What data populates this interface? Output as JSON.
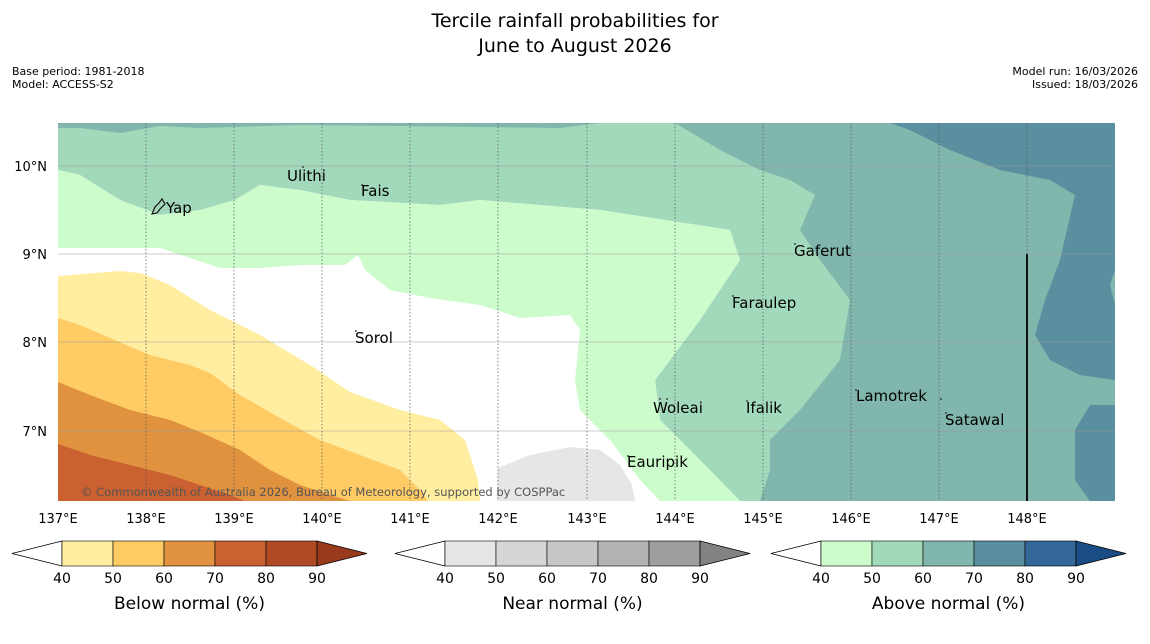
{
  "title": {
    "line1": "Tercile rainfall probabilities for",
    "line2": "June to August 2026"
  },
  "meta_left": {
    "base_period": "Base period: 1981-2018",
    "model": "Model: ACCESS-S2"
  },
  "meta_right": {
    "model_run": "Model run: 16/03/2026",
    "issued": "Issued: 18/03/2026"
  },
  "map": {
    "lat_labels": [
      "10°N",
      "9°N",
      "8°N",
      "7°N"
    ],
    "lon_labels": [
      "137°E",
      "138°E",
      "139°E",
      "140°E",
      "141°E",
      "142°E",
      "143°E",
      "144°E",
      "145°E",
      "146°E",
      "147°E",
      "148°E"
    ],
    "places": [
      {
        "name": "Ulithi"
      },
      {
        "name": "Fais"
      },
      {
        "name": "Yap"
      },
      {
        "name": "Gaferut"
      },
      {
        "name": "Faraulep"
      },
      {
        "name": "Sorol"
      },
      {
        "name": "Lamotrek"
      },
      {
        "name": "Woleai"
      },
      {
        "name": "Ifalik"
      },
      {
        "name": "Satawal"
      },
      {
        "name": "Eauripik"
      }
    ],
    "copyright": "© Commonwealth of Australia 2026, Bureau of Meteorology, supported by COSPPac"
  },
  "colorbars": [
    {
      "title": "Below normal (%)",
      "ticks": [
        "40",
        "50",
        "60",
        "70",
        "80",
        "90"
      ],
      "colors": [
        "#ffeda0",
        "#fecb65",
        "#e0923f",
        "#cb6130",
        "#b04a25",
        "#9a3a1d"
      ]
    },
    {
      "title": "Near normal (%)",
      "ticks": [
        "40",
        "50",
        "60",
        "70",
        "80",
        "90"
      ],
      "colors": [
        "#e6e6e6",
        "#d6d6d6",
        "#c6c6c6",
        "#b3b3b3",
        "#9e9e9e",
        "#838383"
      ]
    },
    {
      "title": "Above normal (%)",
      "ticks": [
        "40",
        "50",
        "60",
        "70",
        "80",
        "90"
      ],
      "colors": [
        "#ccfccc",
        "#a3d9bb",
        "#80b6ac",
        "#5a8fa0",
        "#336699",
        "#1a4d86"
      ]
    }
  ]
}
